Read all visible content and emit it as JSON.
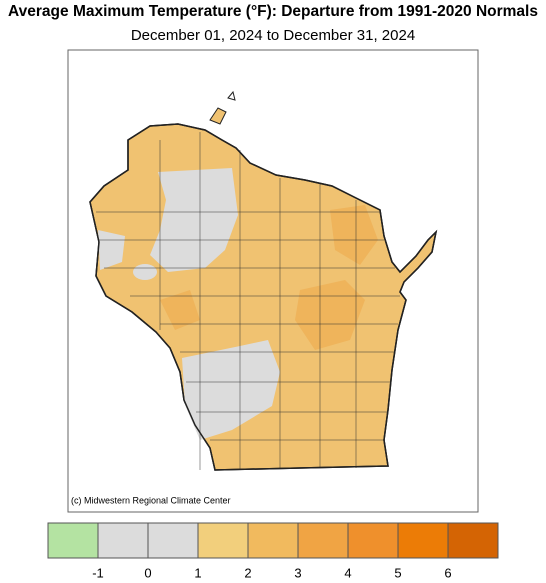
{
  "header": {
    "title": "Average Maximum Temperature (°F): Departure from 1991-2020 Normals",
    "subtitle": "December 01, 2024 to December 31, 2024"
  },
  "map": {
    "credit": "(c) Midwestern Regional Climate Center"
  },
  "legend": {
    "colors": [
      "#b4e3a2",
      "#dcdcdc",
      "#dcdcdc",
      "#f2cf7c",
      "#f1ba5e",
      "#f0a444",
      "#ef902c",
      "#ec7c06",
      "#d46404"
    ],
    "ticks": [
      -1,
      0,
      1,
      2,
      3,
      4,
      5,
      6
    ]
  }
}
